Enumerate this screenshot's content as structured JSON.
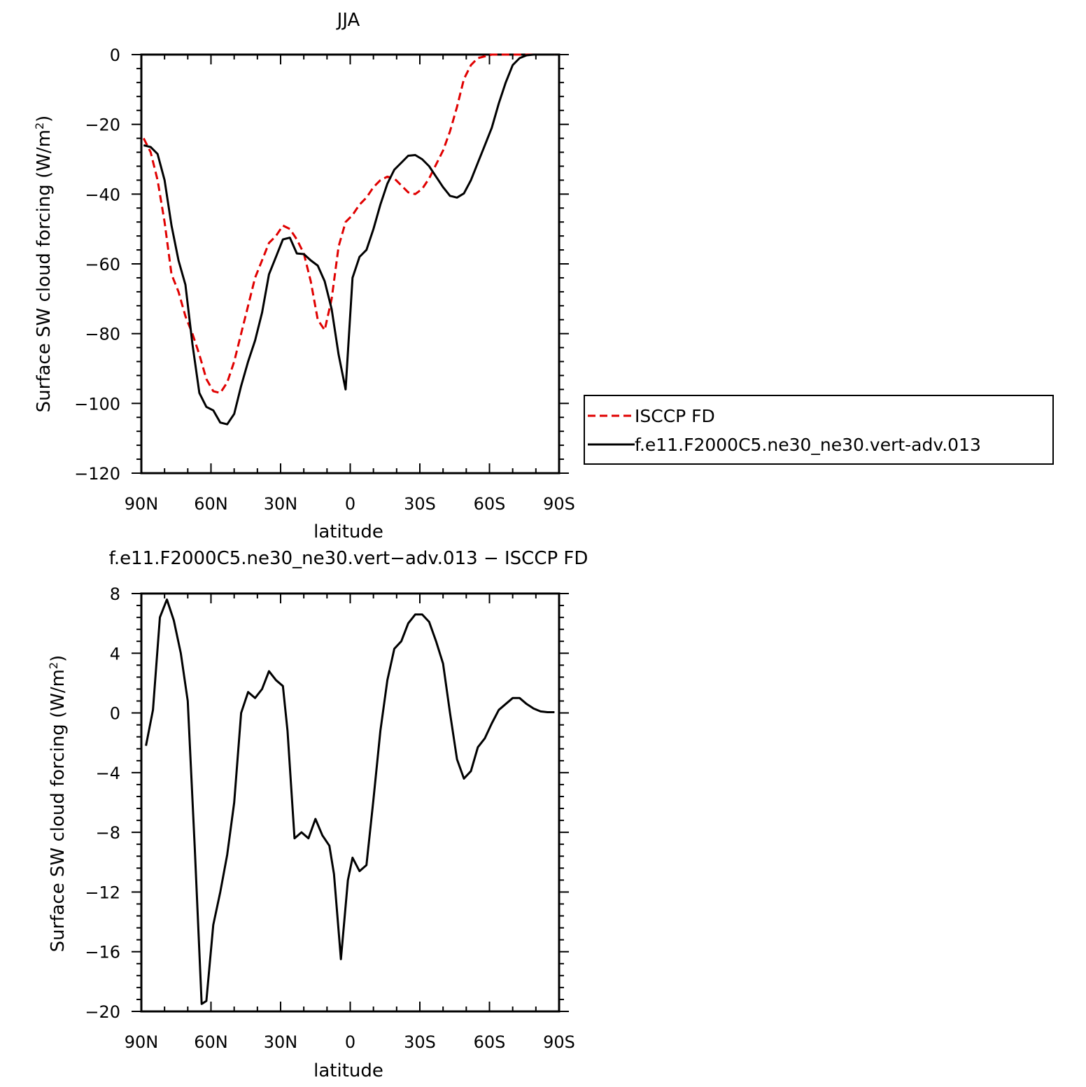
{
  "chart_data": [
    {
      "type": "line",
      "title": "JJA",
      "xlabel": "latitude",
      "ylabel": "Surface SW cloud forcing (W/m",
      "ylabel_sup": "2",
      "ylabel_tail": ")",
      "xlim": [
        90,
        -90
      ],
      "ylim": [
        -120,
        0
      ],
      "x_ticks": [
        90,
        60,
        30,
        0,
        -30,
        -60,
        -90
      ],
      "x_tick_labels": [
        "90N",
        "60N",
        "30N",
        "0",
        "30S",
        "60S",
        "90S"
      ],
      "y_ticks": [
        0,
        -20,
        -40,
        -60,
        -80,
        -100,
        -120
      ],
      "y_tick_labels": [
        "0",
        "−20",
        "−40",
        "−60",
        "−80",
        "−100",
        "−120"
      ],
      "legend": "right",
      "series": [
        {
          "name": "ISCCP FD",
          "color": "#e00000",
          "dash": true,
          "x": [
            89,
            86,
            83,
            80,
            77,
            74,
            71,
            68,
            65,
            62,
            59,
            56,
            53,
            50,
            47,
            44,
            41,
            38,
            35,
            32,
            29,
            26,
            23,
            20,
            17,
            14,
            11,
            8,
            5,
            2,
            -1,
            -4,
            -7,
            -10,
            -13,
            -16,
            -19,
            -22,
            -25,
            -28,
            -31,
            -34,
            -37,
            -40,
            -43,
            -46,
            -49,
            -52,
            -55,
            -58,
            -61,
            -64,
            -67,
            -70,
            -73,
            -76,
            -79,
            -82,
            -85,
            -88
          ],
          "values": [
            -24,
            -28,
            -36,
            -48,
            -63,
            -68,
            -75,
            -80,
            -86,
            -93,
            -96.5,
            -97,
            -94,
            -88,
            -80,
            -72,
            -64,
            -59,
            -54,
            -52,
            -49,
            -50,
            -53,
            -57,
            -65,
            -76,
            -79,
            -70,
            -55,
            -48,
            -46,
            -43,
            -41,
            -38,
            -36,
            -35,
            -35.5,
            -37.5,
            -39.5,
            -40,
            -38.5,
            -35.5,
            -31.5,
            -27.5,
            -22,
            -15,
            -7,
            -3,
            -1,
            -0.5,
            0,
            0,
            0,
            0,
            0,
            0,
            0,
            0,
            0,
            0
          ]
        },
        {
          "name": "f.e11.F2000C5.ne30_ne30.vert-adv.013",
          "color": "#000000",
          "dash": false,
          "x": [
            89,
            86,
            83,
            80,
            77,
            74,
            71,
            68,
            65,
            62,
            59,
            56,
            53,
            50,
            47,
            44,
            41,
            38,
            35,
            32,
            29,
            26,
            23,
            20,
            17,
            14,
            11,
            8,
            5,
            2,
            -1,
            -4,
            -7,
            -10,
            -13,
            -16,
            -19,
            -22,
            -25,
            -28,
            -31,
            -34,
            -37,
            -40,
            -43,
            -46,
            -49,
            -52,
            -55,
            -58,
            -61,
            -64,
            -67,
            -70,
            -73,
            -76,
            -79,
            -82,
            -85,
            -88
          ],
          "values": [
            -26,
            -26.5,
            -28.5,
            -36,
            -49,
            -59,
            -66,
            -83,
            -97,
            -101,
            -102,
            -105.5,
            -106,
            -103,
            -95,
            -88,
            -82,
            -74,
            -63,
            -58,
            -53,
            -52.5,
            -57,
            -57.2,
            -59,
            -60.5,
            -65,
            -73,
            -86,
            -96,
            -64,
            -58,
            -56,
            -50,
            -43,
            -37,
            -33,
            -31,
            -29,
            -28.8,
            -30,
            -32,
            -35,
            -38,
            -40.5,
            -41,
            -39.8,
            -36,
            -31,
            -26,
            -21,
            -14,
            -8,
            -3,
            -1,
            -0.2,
            0,
            0,
            0,
            0
          ]
        }
      ]
    },
    {
      "type": "line",
      "title": "f.e11.F2000C5.ne30_ne30.vert−adv.013 − ISCCP FD",
      "xlabel": "latitude",
      "ylabel": "Surface SW cloud forcing (W/m",
      "ylabel_sup": "2",
      "ylabel_tail": ")",
      "xlim": [
        90,
        -90
      ],
      "ylim": [
        -20,
        8
      ],
      "x_ticks": [
        90,
        60,
        30,
        0,
        -30,
        -60,
        -90
      ],
      "x_tick_labels": [
        "90N",
        "60N",
        "30N",
        "0",
        "30S",
        "60S",
        "90S"
      ],
      "y_ticks": [
        8,
        4,
        0,
        -4,
        -8,
        -12,
        -16,
        -20
      ],
      "y_tick_labels": [
        "8",
        "4",
        "0",
        "−4",
        "−8",
        "−12",
        "−16",
        "−20"
      ],
      "series": [
        {
          "color": "#000000",
          "x": [
            88,
            85,
            82,
            79,
            76,
            73,
            70,
            67,
            64,
            62,
            59,
            56,
            53,
            50,
            47,
            44,
            41,
            38,
            35,
            32,
            29,
            27,
            24,
            21,
            18,
            15,
            12,
            9,
            7,
            4,
            1,
            -1,
            -4,
            -7,
            -10,
            -13,
            -16,
            -19,
            -22,
            -25,
            -28,
            -31,
            -34,
            -37,
            -40,
            -43,
            -46,
            -49,
            -52,
            -55,
            -58,
            -61,
            -64,
            -67,
            -70,
            -73,
            -76,
            -79,
            -82,
            -85,
            -88
          ],
          "values": [
            -2.2,
            0.2,
            6.4,
            7.6,
            6.2,
            4,
            0.8,
            -9,
            -19.5,
            -19.3,
            -14.2,
            -12,
            -9.5,
            -6,
            0,
            1.4,
            1,
            1.6,
            2.8,
            2.2,
            1.8,
            -1.2,
            -8.4,
            -8,
            -8.4,
            -7.1,
            -8.2,
            -8.9,
            -10.8,
            -16.5,
            -11.2,
            -9.7,
            -10.6,
            -10.2,
            -5.8,
            -1.2,
            2.2,
            4.3,
            4.8,
            6,
            6.6,
            6.6,
            6.1,
            4.8,
            3.3,
            0,
            -3.1,
            -4.4,
            -3.9,
            -2.3,
            -1.7,
            -0.7,
            0.2,
            0.6,
            1,
            1,
            0.6,
            0.3,
            0.1,
            0.05,
            0.05
          ]
        }
      ]
    }
  ]
}
